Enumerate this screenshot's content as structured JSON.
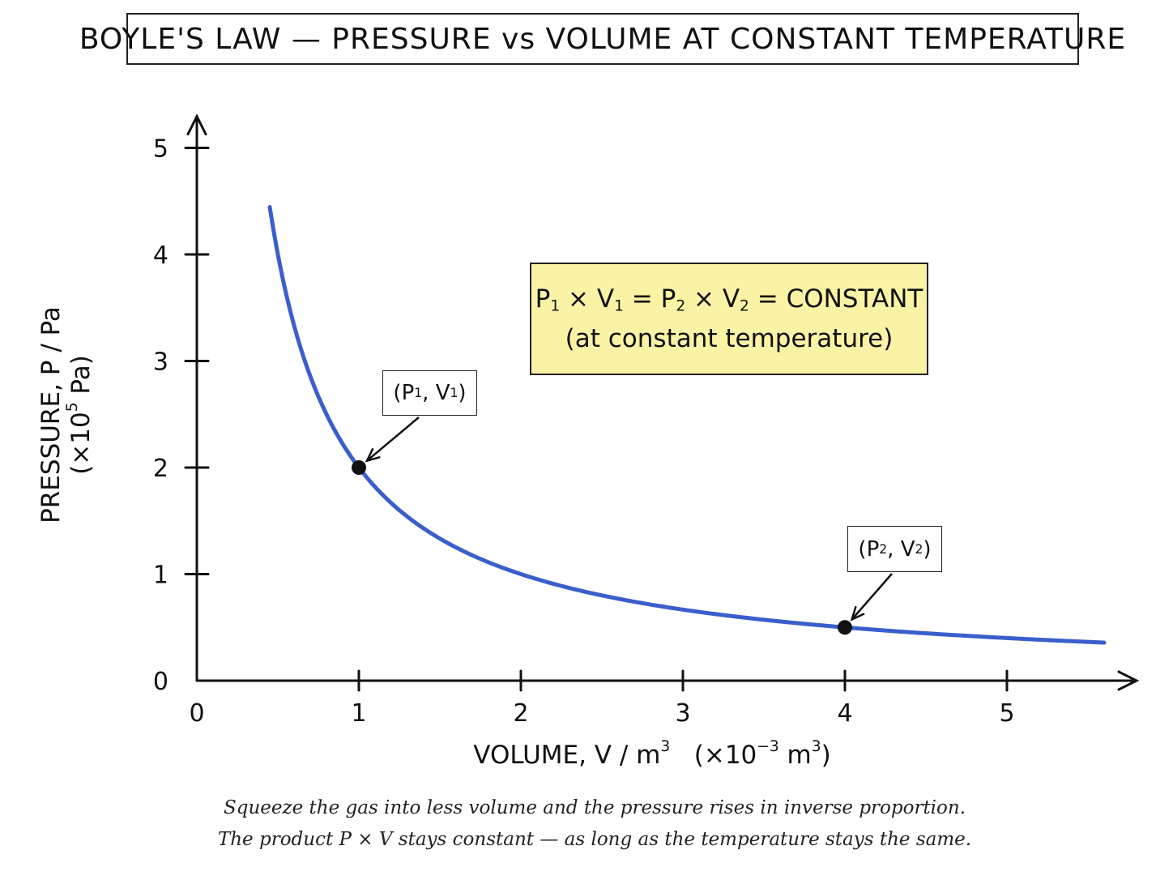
{
  "chart_data": {
    "type": "line",
    "title": "BOYLE'S LAW — PRESSURE vs VOLUME AT CONSTANT TEMPERATURE",
    "xlabel": {
      "main": "VOLUME, V / m",
      "sup": "3",
      "scale_prefix": "(×10",
      "scale_exp": "−3",
      "scale_unit": " m",
      "scale_unit_sup": "3",
      "scale_close": ")"
    },
    "ylabel": {
      "main": "PRESSURE, P / Pa",
      "scale_prefix": "(×10",
      "scale_exp": "5",
      "scale_suffix": " Pa)"
    },
    "xlim": [
      0,
      5.75
    ],
    "ylim": [
      0,
      5.25
    ],
    "x_ticks": [
      0,
      1,
      2,
      3,
      4,
      5
    ],
    "y_ticks": [
      0,
      1,
      2,
      3,
      4,
      5
    ],
    "grid": false,
    "series": [
      {
        "pv_constant": 2.0,
        "x_start": 0.45,
        "x_end": 5.6,
        "color": "#3a5fcd"
      }
    ],
    "points": [
      {
        "x": 1.0,
        "y": 2.0,
        "label_base": [
          "(P",
          ", V",
          ")"
        ],
        "label_sub": [
          "1",
          "1"
        ]
      },
      {
        "x": 4.0,
        "y": 0.5,
        "label_base": [
          "(P",
          ", V",
          ")"
        ],
        "label_sub": [
          "2",
          "2"
        ]
      }
    ],
    "formula": {
      "line1_parts": [
        "P",
        " × V",
        " = P",
        " × V",
        " = CONSTANT"
      ],
      "line1_subs": [
        "1",
        "1",
        "2",
        "2"
      ],
      "line2": "(at constant temperature)",
      "fill_color": "#faf3a6"
    },
    "caption": [
      "Squeeze the gas into less volume and the pressure rises in inverse proportion.",
      "The product P × V stays constant — as long as the temperature stays the same."
    ]
  }
}
